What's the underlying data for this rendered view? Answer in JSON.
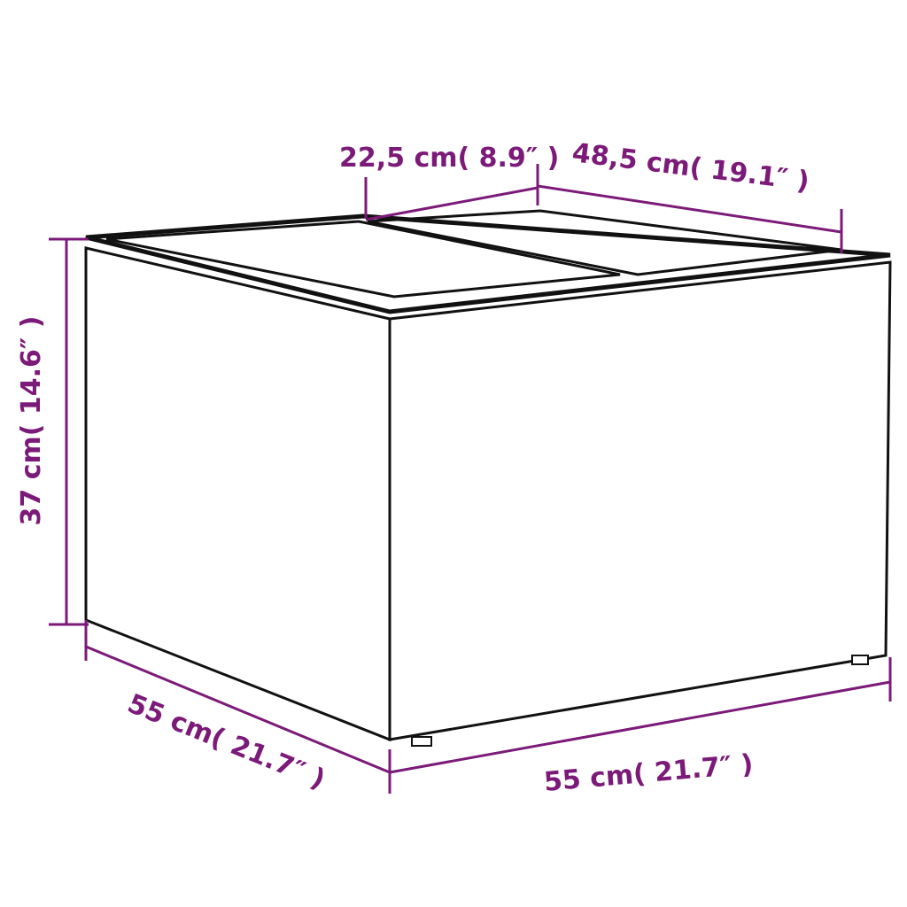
{
  "dimensions": {
    "top_width": "22,5 cm( 8.9″ )",
    "top_depth": "48,5 cm( 19.1″ )",
    "height": "37 cm( 14.6″ )",
    "depth": "55 cm( 21.7″ )",
    "width": "55 cm( 21.7″ )"
  },
  "colors": {
    "dimension": "#7b1a78",
    "outline": "#111111",
    "background": "#ffffff"
  },
  "product": {
    "icon": "wicker-storage-box-with-two-lids"
  }
}
